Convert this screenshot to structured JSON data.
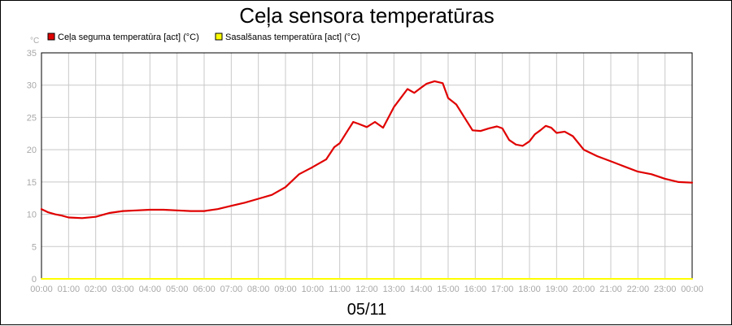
{
  "chart_data": {
    "type": "line",
    "title": "Ceļa sensora temperatūras",
    "ylabel": "°C",
    "xlabel": "05/11",
    "ylim": [
      0,
      35
    ],
    "yticks": [
      0,
      5,
      10,
      15,
      20,
      25,
      30,
      35
    ],
    "xticks": [
      "00:00",
      "01:00",
      "02:00",
      "03:00",
      "04:00",
      "05:00",
      "06:00",
      "07:00",
      "08:00",
      "09:00",
      "10:00",
      "11:00",
      "12:00",
      "13:00",
      "14:00",
      "15:00",
      "16:00",
      "17:00",
      "18:00",
      "19:00",
      "20:00",
      "21:00",
      "22:00",
      "23:00",
      "00:00"
    ],
    "grid": true,
    "legend_position": "top-left",
    "series": [
      {
        "name": "Ceļa seguma temperatūra [act] (°C)",
        "color": "#e00000",
        "x": [
          0,
          0.25,
          0.5,
          0.75,
          1,
          1.5,
          2,
          2.5,
          3,
          3.5,
          4,
          4.5,
          5,
          5.5,
          6,
          6.5,
          7,
          7.5,
          8,
          8.5,
          9,
          9.5,
          10,
          10.5,
          10.8,
          11,
          11.3,
          11.5,
          11.7,
          12,
          12.3,
          12.6,
          12.8,
          13,
          13.25,
          13.5,
          13.75,
          14,
          14.2,
          14.5,
          14.8,
          15,
          15.3,
          15.6,
          15.9,
          16.2,
          16.5,
          16.8,
          17,
          17.25,
          17.5,
          17.75,
          18,
          18.2,
          18.4,
          18.6,
          18.8,
          19,
          19.3,
          19.6,
          20,
          20.5,
          21,
          21.5,
          22,
          22.5,
          23,
          23.5,
          24
        ],
        "y": [
          10.8,
          10.3,
          10.0,
          9.8,
          9.5,
          9.4,
          9.6,
          10.2,
          10.5,
          10.6,
          10.7,
          10.7,
          10.6,
          10.5,
          10.5,
          10.8,
          11.3,
          11.8,
          12.4,
          13.0,
          14.2,
          16.2,
          17.3,
          18.5,
          20.4,
          21.0,
          23.0,
          24.3,
          24.0,
          23.5,
          24.3,
          23.4,
          25.0,
          26.6,
          28.0,
          29.4,
          28.8,
          29.6,
          30.2,
          30.6,
          30.3,
          28.0,
          27.0,
          25.0,
          23.0,
          22.9,
          23.3,
          23.6,
          23.3,
          21.5,
          20.8,
          20.6,
          21.3,
          22.4,
          23.0,
          23.7,
          23.4,
          22.6,
          22.8,
          22.1,
          20.0,
          19.0,
          18.2,
          17.4,
          16.6,
          16.2,
          15.5,
          15.0,
          14.9
        ]
      },
      {
        "name": "Sasalšanas temperatūra [act] (°C)",
        "color": "#ffff00",
        "x": [
          0,
          24
        ],
        "y": [
          0,
          0
        ]
      }
    ]
  }
}
